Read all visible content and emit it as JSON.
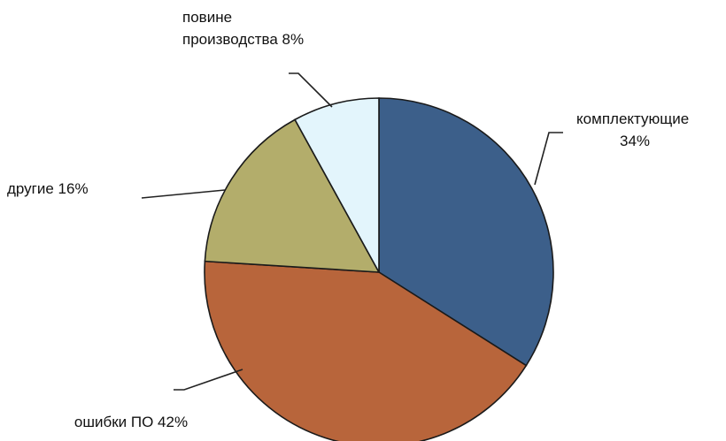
{
  "chart_data": {
    "type": "pie",
    "title": "",
    "start_angle_deg": 0,
    "direction": "clockwise",
    "legend": "none",
    "slices": [
      {
        "label": "комплектующие",
        "value": 34,
        "percent_text": "34%",
        "color": "#3c5f8a"
      },
      {
        "label": "ошибки ПО",
        "value": 42,
        "percent_text": "42%",
        "color": "#b8653b"
      },
      {
        "label": "другие",
        "value": 16,
        "percent_text": "16%",
        "color": "#b3ad6b"
      },
      {
        "label": "повине производства",
        "value": 8,
        "percent_text": "8%",
        "color": "#e3f5fc"
      }
    ],
    "data_labels": [
      {
        "lines": [
          "комплектующие",
          "34%"
        ]
      },
      {
        "lines": [
          "ошибки ПО 42%"
        ]
      },
      {
        "lines": [
          "другие 16%"
        ]
      },
      {
        "lines": [
          "повине",
          "производства 8%"
        ]
      }
    ]
  }
}
